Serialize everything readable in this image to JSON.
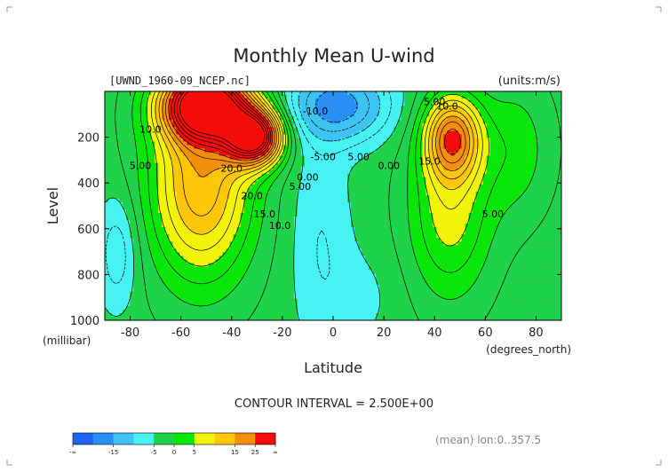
{
  "title": "Monthly Mean U-wind",
  "file_label": "[UWND_1960-09_NCEP.nc]",
  "units_label": "(units:m/s)",
  "contour_interval_text": "CONTOUR INTERVAL = 2.500E+00",
  "footer_note": "(mean) lon:0..357.5",
  "colorbar": {
    "tick_labels": [
      "-∞",
      "-15",
      "-5",
      "0",
      "5",
      "15",
      "25",
      "∞"
    ],
    "colors": [
      "#1c66f2",
      "#2a8ff2",
      "#3cc3f2",
      "#47f2f2",
      "#1fd24a",
      "#0ae60a",
      "#f2f20a",
      "#ffc60a",
      "#f28f0a",
      "#f20c0a"
    ]
  },
  "chart_data": {
    "type": "contour",
    "title": "Monthly Mean U-wind",
    "xlabel": "Latitude",
    "xunit": "(degrees_north)",
    "ylabel": "Level",
    "yunit": "(millibar)",
    "xlim": [
      -90,
      90
    ],
    "ylim": [
      1000,
      0
    ],
    "x_ticks": [
      -80,
      -60,
      -40,
      -20,
      0,
      20,
      40,
      60,
      80
    ],
    "y_ticks": [
      200,
      400,
      600,
      800,
      1000
    ],
    "contour_interval": 2.5,
    "contour_labels": [
      {
        "text": "10.0",
        "lat": -72,
        "lev": 180
      },
      {
        "text": "5.00",
        "lat": -76,
        "lev": 340
      },
      {
        "text": "20.0",
        "lat": -40,
        "lev": 350
      },
      {
        "text": "20.0",
        "lat": -32,
        "lev": 470
      },
      {
        "text": "15.0",
        "lat": -27,
        "lev": 550
      },
      {
        "text": "10.0",
        "lat": -21,
        "lev": 600
      },
      {
        "text": "5.00",
        "lat": -13,
        "lev": 430
      },
      {
        "text": "0.00",
        "lat": -10,
        "lev": 390
      },
      {
        "text": "-5.00",
        "lat": -4,
        "lev": 300
      },
      {
        "text": "-10.0",
        "lat": -7,
        "lev": 100
      },
      {
        "text": "5.00",
        "lat": 10,
        "lev": 300
      },
      {
        "text": "0.00",
        "lat": 22,
        "lev": 340
      },
      {
        "text": "5.00",
        "lat": 40,
        "lev": 60
      },
      {
        "text": "10.0",
        "lat": 45,
        "lev": 80
      },
      {
        "text": "15.0",
        "lat": 38,
        "lev": 320
      },
      {
        "text": "5.00",
        "lat": 63,
        "lev": 550
      }
    ],
    "jets": [
      {
        "lat": -50,
        "lev": 60,
        "max": 35
      },
      {
        "lat": -32,
        "lev": 200,
        "max": 35
      },
      {
        "lat": 47,
        "lev": 200,
        "max": 20
      }
    ]
  }
}
